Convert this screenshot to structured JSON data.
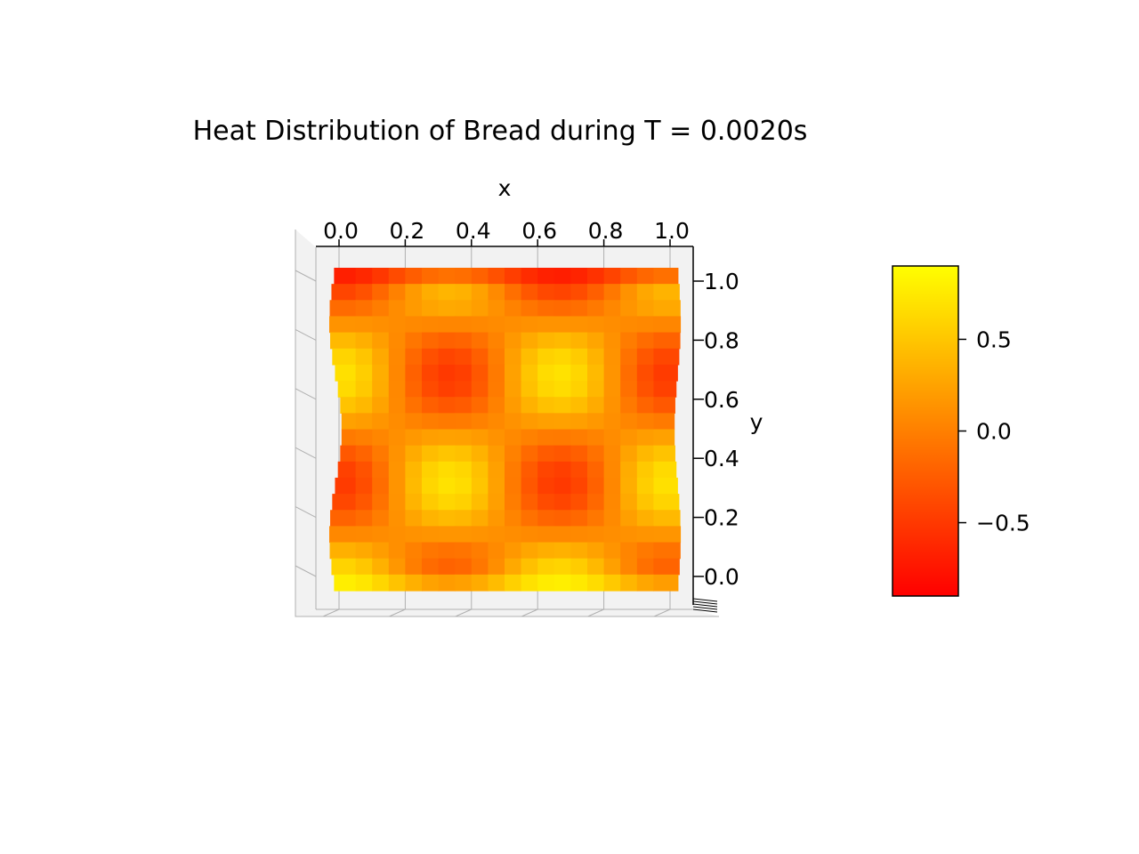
{
  "chart_data": {
    "type": "heatmap",
    "title": "Heat Distribution of Bread during T = 0.0020s",
    "xlabel": "x",
    "ylabel": "y",
    "x_range": [
      0.0,
      1.0
    ],
    "y_range": [
      0.0,
      1.0
    ],
    "x_ticks": [
      "0.0",
      "0.2",
      "0.4",
      "0.6",
      "0.8",
      "1.0"
    ],
    "y_ticks": [
      "0.0",
      "0.2",
      "0.4",
      "0.6",
      "0.8",
      "1.0"
    ],
    "grid": 20,
    "field": "cos(3πx)·cos(3πy) blended with bottom edge ≈ 0.9 and top edge ≈ -0.9",
    "colormap": {
      "name": "autumn",
      "low": "#ff0000",
      "high": "#ffff00"
    },
    "value_range": [
      -0.9,
      0.9
    ],
    "colorbar": {
      "ticks": [
        0.5,
        0.0,
        -0.5
      ],
      "tick_labels": [
        "0.5",
        "0.0",
        "−0.5"
      ]
    },
    "view": "3d-surface viewed from top",
    "pane_color": "#f2f2f2",
    "grid_line_color": "#b0b0b0"
  }
}
